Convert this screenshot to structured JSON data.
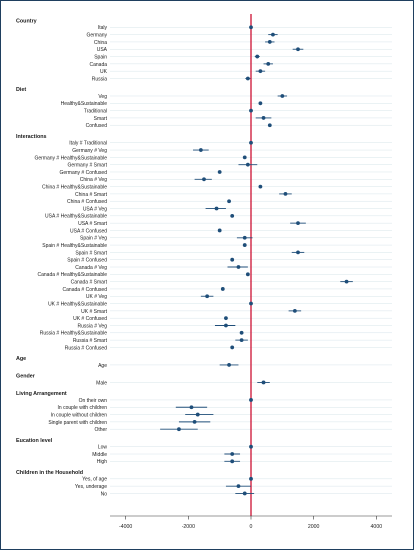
{
  "chart_data": {
    "type": "scatter",
    "orientation": "horizontal",
    "error_bars": true,
    "grid": true,
    "reference_line_x": 0,
    "colors": {
      "point": "#1f4e79",
      "ci": "#1f4e79",
      "reference_line": "#cc1133",
      "grid": "#d7e4ea",
      "outer_border": "#1f3f5f"
    },
    "xlim": [
      -4500,
      4500
    ],
    "xticks": [
      -4000,
      -2000,
      0,
      2000,
      4000
    ],
    "xtick_labels": [
      "-4000",
      "-2000",
      "0",
      "2000",
      "4000"
    ],
    "groups": [
      {
        "heading": "Country",
        "items": [
          {
            "label": "Italy",
            "value": 0,
            "ci": [
              0,
              0
            ]
          },
          {
            "label": "Germany",
            "value": 700,
            "ci": [
              550,
              850
            ]
          },
          {
            "label": "China",
            "value": 600,
            "ci": [
              450,
              750
            ]
          },
          {
            "label": "USA",
            "value": 1500,
            "ci": [
              1330,
              1670
            ]
          },
          {
            "label": "Spain",
            "value": 200,
            "ci": [
              120,
              280
            ]
          },
          {
            "label": "Canada",
            "value": 550,
            "ci": [
              400,
              700
            ]
          },
          {
            "label": "UK",
            "value": 300,
            "ci": [
              150,
              450
            ]
          },
          {
            "label": "Russia",
            "value": -100,
            "ci": [
              -180,
              -20
            ]
          }
        ]
      },
      {
        "heading": "Diet",
        "items": [
          {
            "label": "Veg",
            "value": 1000,
            "ci": [
              850,
              1150
            ]
          },
          {
            "label": "Healthy&Sustainable",
            "value": 300,
            "ci": [
              250,
              350
            ]
          },
          {
            "label": "Traditional",
            "value": 0,
            "ci": [
              0,
              0
            ]
          },
          {
            "label": "Smart",
            "value": 400,
            "ci": [
              150,
              650
            ]
          },
          {
            "label": "Confused",
            "value": 600,
            "ci": [
              550,
              650
            ]
          }
        ]
      },
      {
        "heading": "Interactions",
        "items": [
          {
            "label": "Italy # Traditional",
            "value": 0,
            "ci": [
              0,
              0
            ]
          },
          {
            "label": "Germany # Veg",
            "value": -1600,
            "ci": [
              -1850,
              -1350
            ]
          },
          {
            "label": "Germany # Healthy&Sustainable",
            "value": -200,
            "ci": [
              -250,
              -150
            ]
          },
          {
            "label": "Germany # Smart",
            "value": -100,
            "ci": [
              -400,
              200
            ]
          },
          {
            "label": "Germany # Confused",
            "value": -1000,
            "ci": [
              -1050,
              -950
            ]
          },
          {
            "label": "China # Veg",
            "value": -1500,
            "ci": [
              -1800,
              -1250
            ]
          },
          {
            "label": "China # Healthy&Sustainable",
            "value": 300,
            "ci": [
              250,
              350
            ]
          },
          {
            "label": "China # Smart",
            "value": 1100,
            "ci": [
              900,
              1300
            ]
          },
          {
            "label": "China # Confused",
            "value": -700,
            "ci": [
              -750,
              -650
            ]
          },
          {
            "label": "USA # Veg",
            "value": -1100,
            "ci": [
              -1450,
              -800
            ]
          },
          {
            "label": "USA # Healthy&Sustainable",
            "value": -600,
            "ci": [
              -650,
              -550
            ]
          },
          {
            "label": "USA # Smart",
            "value": 1500,
            "ci": [
              1250,
              1750
            ]
          },
          {
            "label": "USA # Confused",
            "value": -1000,
            "ci": [
              -1050,
              -950
            ]
          },
          {
            "label": "Spain # Veg",
            "value": -200,
            "ci": [
              -450,
              50
            ]
          },
          {
            "label": "Spain # Healthy&Sustainable",
            "value": -200,
            "ci": [
              -250,
              -150
            ]
          },
          {
            "label": "Spain # Smart",
            "value": 1500,
            "ci": [
              1300,
              1700
            ]
          },
          {
            "label": "Spain # Confused",
            "value": -600,
            "ci": [
              -650,
              -550
            ]
          },
          {
            "label": "Canada # Veg",
            "value": -400,
            "ci": [
              -750,
              -100
            ]
          },
          {
            "label": "Canada # Healthy&Sustainable",
            "value": -100,
            "ci": [
              -150,
              -50
            ]
          },
          {
            "label": "Canada # Smart",
            "value": 3050,
            "ci": [
              2850,
              3250
            ]
          },
          {
            "label": "Canada # Confused",
            "value": -900,
            "ci": [
              -950,
              -850
            ]
          },
          {
            "label": "UK # Veg",
            "value": -1400,
            "ci": [
              -1600,
              -1200
            ]
          },
          {
            "label": "UK # Healthy&Sustainable",
            "value": 0,
            "ci": [
              -50,
              50
            ]
          },
          {
            "label": "UK # Smart",
            "value": 1400,
            "ci": [
              1200,
              1600
            ]
          },
          {
            "label": "UK # Confused",
            "value": -800,
            "ci": [
              -850,
              -750
            ]
          },
          {
            "label": "Russia # Veg",
            "value": -800,
            "ci": [
              -1150,
              -500
            ]
          },
          {
            "label": "Russia # Healthy&Sustainable",
            "value": -300,
            "ci": [
              -350,
              -250
            ]
          },
          {
            "label": "Russia # Smart",
            "value": -300,
            "ci": [
              -500,
              -100
            ]
          },
          {
            "label": "Russia # Confused",
            "value": -600,
            "ci": [
              -650,
              -550
            ]
          }
        ]
      },
      {
        "heading": "Age",
        "items": [
          {
            "label": "Age",
            "value": -700,
            "ci": [
              -1000,
              -400
            ]
          }
        ]
      },
      {
        "heading": "Gender",
        "items": [
          {
            "label": "Male",
            "value": 400,
            "ci": [
              200,
              600
            ]
          }
        ]
      },
      {
        "heading": "Living Arrangement",
        "items": [
          {
            "label": "On their own",
            "value": 0,
            "ci": [
              0,
              0
            ]
          },
          {
            "label": "In couple with children",
            "value": -1900,
            "ci": [
              -2400,
              -1400
            ]
          },
          {
            "label": "In couple without children",
            "value": -1700,
            "ci": [
              -2100,
              -1200
            ]
          },
          {
            "label": "Single parent with children",
            "value": -1800,
            "ci": [
              -2300,
              -1300
            ]
          },
          {
            "label": "Other",
            "value": -2300,
            "ci": [
              -2900,
              -1700
            ]
          }
        ]
      },
      {
        "heading": "Eucation level",
        "items": [
          {
            "label": "Low",
            "value": 0,
            "ci": [
              0,
              0
            ]
          },
          {
            "label": "Middle",
            "value": -600,
            "ci": [
              -850,
              -350
            ]
          },
          {
            "label": "High",
            "value": -600,
            "ci": [
              -850,
              -350
            ]
          }
        ]
      },
      {
        "heading": "Children in the Household",
        "items": [
          {
            "label": "Yes, of age",
            "value": 0,
            "ci": [
              0,
              0
            ]
          },
          {
            "label": "Yes, underage",
            "value": -400,
            "ci": [
              -800,
              0
            ]
          },
          {
            "label": "No",
            "value": -200,
            "ci": [
              -500,
              100
            ]
          }
        ]
      }
    ]
  }
}
